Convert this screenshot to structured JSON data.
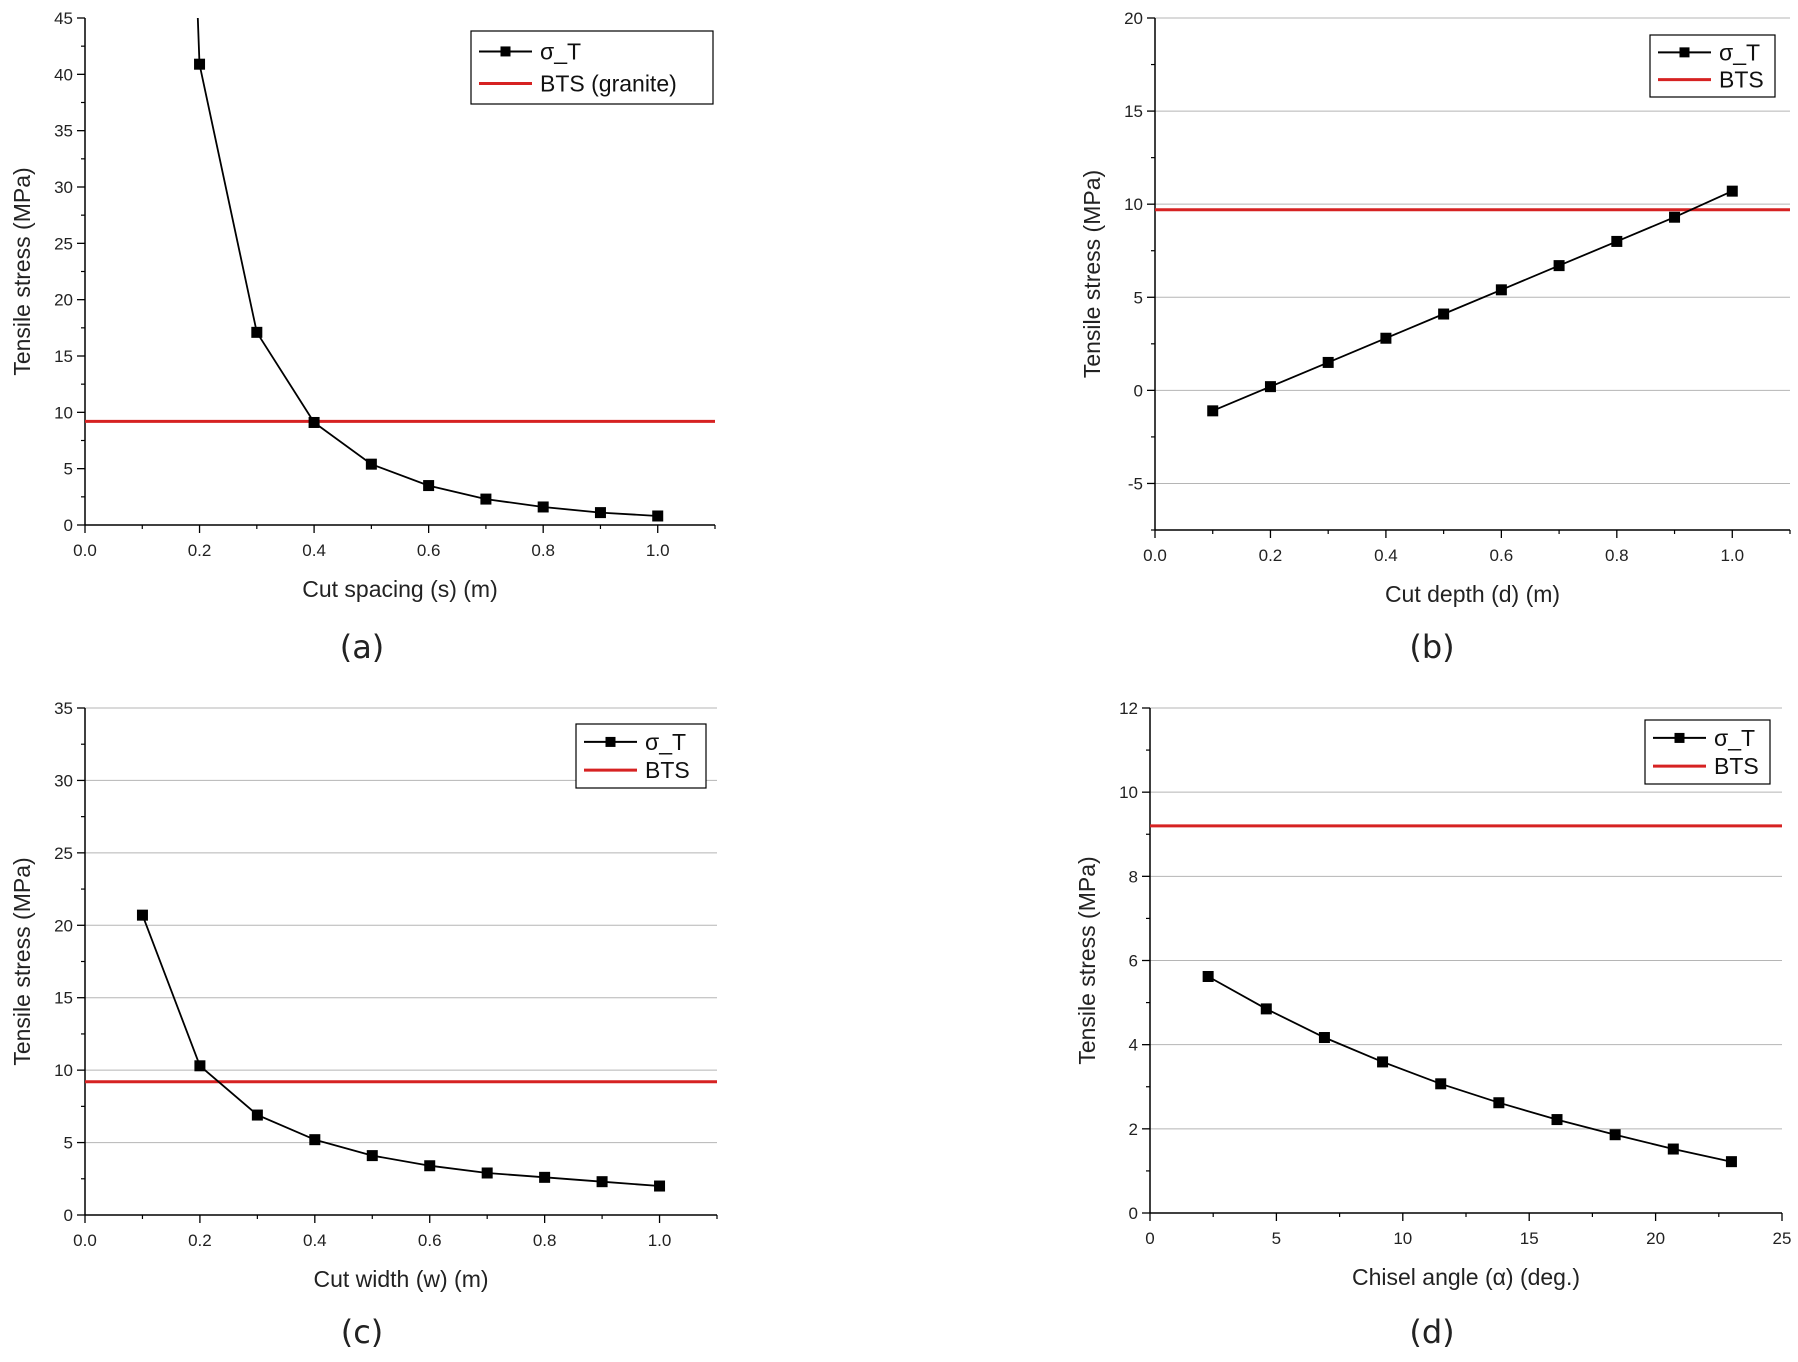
{
  "colors": {
    "series": "#000000",
    "reference": "#d62222",
    "grid": "#b5b5b5",
    "axis": "#000000"
  },
  "chart_data": [
    {
      "type": "line",
      "caption": "(a)",
      "xlabel": "Cut spacing (s) (m)",
      "ylabel": "Tensile stress (MPa)",
      "xlim": [
        0,
        1.1
      ],
      "ylim": [
        0,
        45
      ],
      "xticks": [
        "0.0",
        "0.2",
        "0.4",
        "0.6",
        "0.8",
        "1.0"
      ],
      "yticks": [
        "0",
        "5",
        "10",
        "15",
        "20",
        "25",
        "30",
        "35",
        "40",
        "45"
      ],
      "grid": false,
      "legend_position": "top-right",
      "series": [
        {
          "name": "σ_T",
          "marker": "square",
          "x": [
            0.2,
            0.3,
            0.4,
            0.5,
            0.6,
            0.7,
            0.8,
            0.9,
            1.0
          ],
          "y": [
            40.9,
            17.1,
            9.1,
            5.4,
            3.5,
            2.3,
            1.6,
            1.1,
            0.8
          ],
          "curve_start": {
            "x": 0.197,
            "y": 45
          }
        }
      ],
      "reference_line": {
        "name": "BTS (granite)",
        "y": 9.2
      }
    },
    {
      "type": "line",
      "caption": "(b)",
      "xlabel": "Cut depth (d) (m)",
      "ylabel": "Tensile stress (MPa)",
      "xlim": [
        0,
        1.1
      ],
      "ylim": [
        -7.5,
        20
      ],
      "xticks": [
        "0.0",
        "0.2",
        "0.4",
        "0.6",
        "0.8",
        "1.0"
      ],
      "yticks": [
        "-5",
        "0",
        "5",
        "10",
        "15",
        "20"
      ],
      "grid": true,
      "legend_position": "top-right",
      "series": [
        {
          "name": "σ_T",
          "marker": "square",
          "x": [
            0.1,
            0.2,
            0.3,
            0.4,
            0.5,
            0.6,
            0.7,
            0.8,
            0.9,
            1.0
          ],
          "y": [
            -1.1,
            0.2,
            1.5,
            2.8,
            4.1,
            5.4,
            6.7,
            8.0,
            9.3,
            10.7
          ]
        }
      ],
      "reference_line": {
        "name": "BTS",
        "y": 9.7
      }
    },
    {
      "type": "line",
      "caption": "(c)",
      "xlabel": "Cut width (w) (m)",
      "ylabel": "Tensile stress (MPa)",
      "xlim": [
        0,
        1.1
      ],
      "ylim": [
        0,
        35
      ],
      "xticks": [
        "0.0",
        "0.2",
        "0.4",
        "0.6",
        "0.8",
        "1.0"
      ],
      "yticks": [
        "0",
        "5",
        "10",
        "15",
        "20",
        "25",
        "30",
        "35"
      ],
      "grid": true,
      "legend_position": "top-right",
      "series": [
        {
          "name": "σ_T",
          "marker": "square",
          "x": [
            0.1,
            0.2,
            0.3,
            0.4,
            0.5,
            0.6,
            0.7,
            0.8,
            0.9,
            1.0
          ],
          "y": [
            20.7,
            10.3,
            6.9,
            5.2,
            4.1,
            3.4,
            2.9,
            2.6,
            2.3,
            2.0
          ]
        }
      ],
      "reference_line": {
        "name": "BTS",
        "y": 9.2
      }
    },
    {
      "type": "line",
      "caption": "(d)",
      "xlabel": "Chisel angle (α) (deg.)",
      "ylabel": "Tensile stress (MPa)",
      "xlim": [
        0,
        25
      ],
      "ylim": [
        0,
        12
      ],
      "xticks": [
        "0",
        "5",
        "10",
        "15",
        "20",
        "25"
      ],
      "yticks": [
        "0",
        "2",
        "4",
        "6",
        "8",
        "10",
        "12"
      ],
      "grid": true,
      "legend_position": "top-right",
      "series": [
        {
          "name": "σ_T",
          "marker": "square",
          "x": [
            2.3,
            4.6,
            6.9,
            9.2,
            11.5,
            13.8,
            16.1,
            18.4,
            20.7,
            23.0
          ],
          "y": [
            5.62,
            4.85,
            4.17,
            3.59,
            3.07,
            2.62,
            2.22,
            1.86,
            1.52,
            1.22
          ]
        }
      ],
      "reference_line": {
        "name": "BTS",
        "y": 9.2
      }
    }
  ]
}
